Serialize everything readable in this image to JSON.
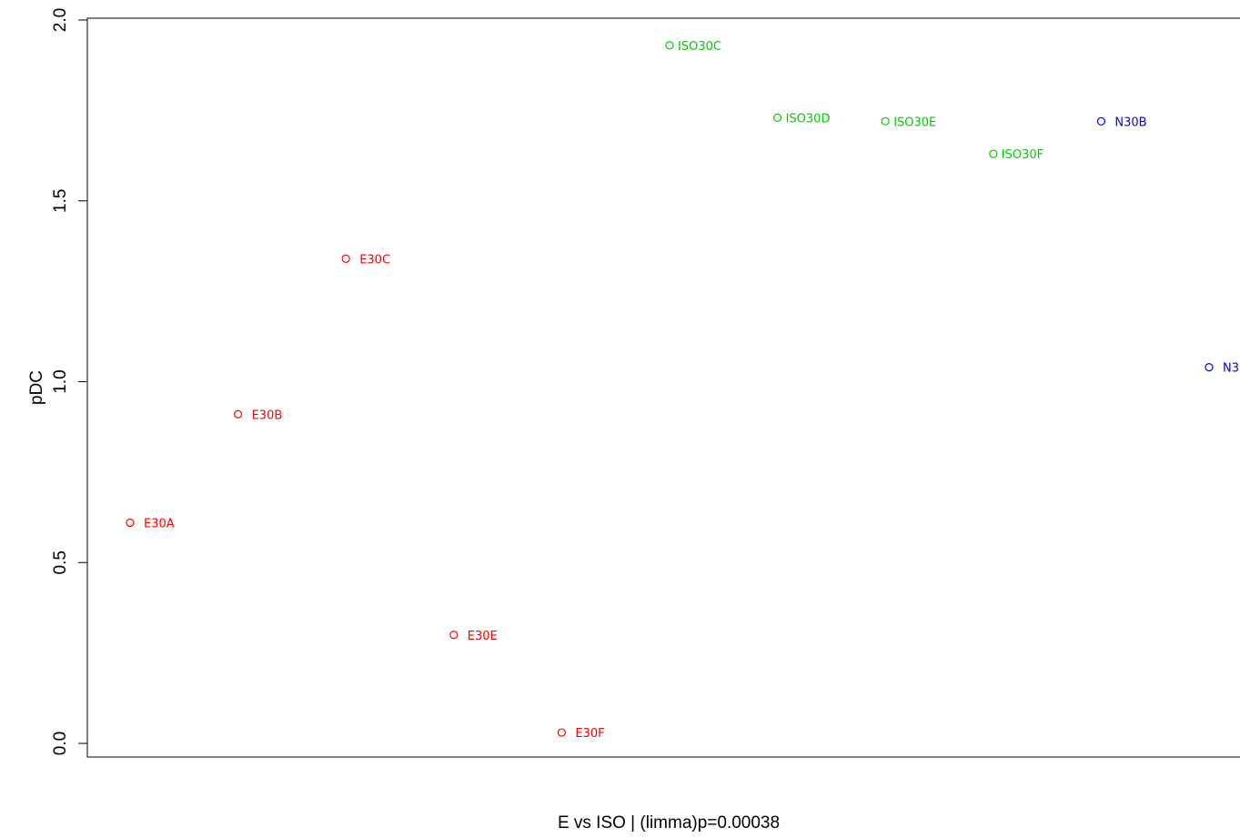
{
  "chart_data": {
    "type": "scatter",
    "xlabel": "E vs ISO | (limma)p=0.00038",
    "ylabel": "pDC",
    "ylim": [
      -0.05,
      2.0
    ],
    "y_ticks": [
      0.0,
      0.5,
      1.0,
      1.5,
      2.0
    ],
    "y_tick_labels": [
      "0.0",
      "0.5",
      "1.0",
      "1.5",
      "2.0"
    ],
    "x_axis_ticks": "none",
    "grid": false,
    "colors": {
      "E": "#ff0000",
      "ISO": "#00cc00",
      "N": "#0000ff"
    },
    "points": [
      {
        "index": 1,
        "label": "E30A",
        "group": "E",
        "y": 0.61
      },
      {
        "index": 2,
        "label": "E30B",
        "group": "E",
        "y": 0.91
      },
      {
        "index": 3,
        "label": "E30C",
        "group": "E",
        "y": 1.34
      },
      {
        "index": 4,
        "label": "E30E",
        "group": "E",
        "y": 0.3
      },
      {
        "index": 5,
        "label": "E30F",
        "group": "E",
        "y": 0.03
      },
      {
        "index": 6,
        "label": "ISO30C",
        "group": "ISO",
        "y": 1.93
      },
      {
        "index": 7,
        "label": "ISO30D",
        "group": "ISO",
        "y": 1.73
      },
      {
        "index": 8,
        "label": "ISO30E",
        "group": "ISO",
        "y": 1.72
      },
      {
        "index": 9,
        "label": "ISO30F",
        "group": "ISO",
        "y": 1.63
      },
      {
        "index": 10,
        "label": "N30B",
        "group": "N",
        "y": 1.72
      },
      {
        "index": 11,
        "label": "N3",
        "group": "N",
        "y": 1.04
      }
    ]
  }
}
